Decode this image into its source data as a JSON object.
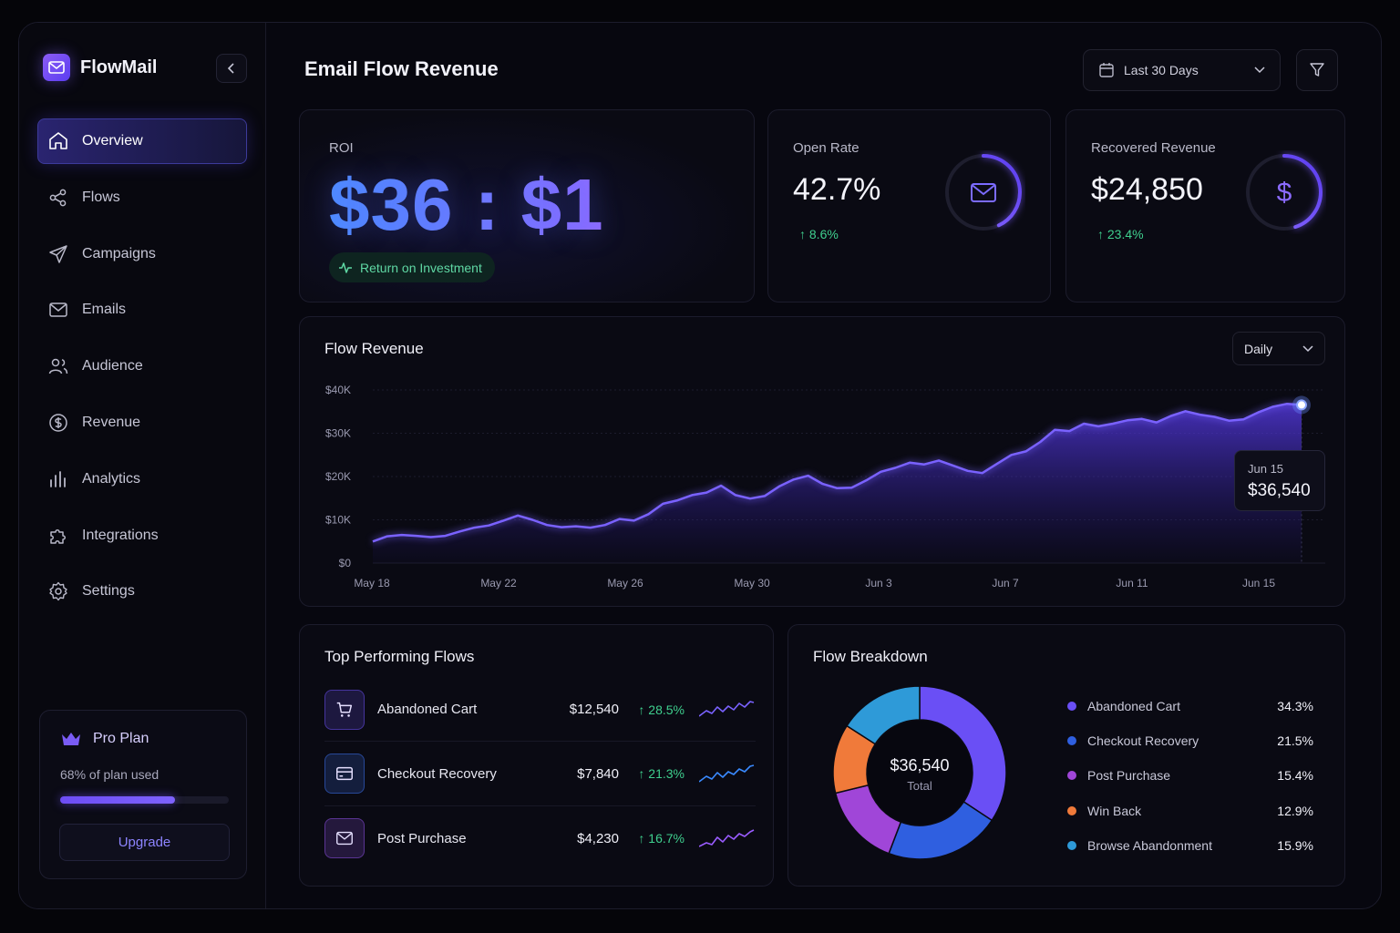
{
  "brand": {
    "name": "FlowMail"
  },
  "nav": [
    {
      "label": "Overview",
      "icon": "home-icon",
      "active": true
    },
    {
      "label": "Flows",
      "icon": "share-icon"
    },
    {
      "label": "Campaigns",
      "icon": "send-icon"
    },
    {
      "label": "Emails",
      "icon": "mail-icon"
    },
    {
      "label": "Audience",
      "icon": "users-icon"
    },
    {
      "label": "Revenue",
      "icon": "dollar-circle-icon"
    },
    {
      "label": "Analytics",
      "icon": "bar-chart-icon"
    },
    {
      "label": "Integrations",
      "icon": "puzzle-icon"
    },
    {
      "label": "Settings",
      "icon": "gear-icon"
    }
  ],
  "plan": {
    "title": "Pro Plan",
    "usage_text": "68% of plan used",
    "usage_fraction": 0.68,
    "upgrade_label": "Upgrade"
  },
  "header": {
    "title": "Email Flow Revenue",
    "date_range": "Last 30 Days"
  },
  "roi": {
    "label": "ROI",
    "value": "$36 : $1",
    "badge": "Return on Investment"
  },
  "open_rate": {
    "label": "Open Rate",
    "value": "42.7%",
    "change": "8.6%",
    "ring_fraction": 0.43
  },
  "recovered": {
    "label": "Recovered Revenue",
    "value": "$24,850",
    "change": "23.4%",
    "ring_fraction": 0.45
  },
  "flow_revenue": {
    "title": "Flow Revenue",
    "granularity": "Daily",
    "tooltip": {
      "date": "Jun 15",
      "value": "$36,540"
    }
  },
  "chart_data": {
    "type": "area",
    "title": "Flow Revenue",
    "y_ticks": [
      "$0",
      "$10K",
      "$20K",
      "$30K",
      "$40K"
    ],
    "ylim": [
      0,
      40000
    ],
    "x_ticks": [
      "May 18",
      "May 22",
      "May 26",
      "May 30",
      "Jun 3",
      "Jun 7",
      "Jun 11",
      "Jun 15"
    ],
    "series": [
      {
        "values": [
          5000,
          6200,
          6500,
          6300,
          6000,
          6300,
          7300,
          8200,
          8700,
          9800,
          11000,
          10000,
          8800,
          8300,
          8500,
          8200,
          8800,
          10200,
          9800,
          11300,
          13700,
          14500,
          15700,
          16300,
          17900,
          15700,
          14900,
          15500,
          17700,
          19300,
          20200,
          18300,
          17300,
          17400,
          19100,
          21100,
          22000,
          23200,
          22800,
          23700,
          22500,
          21300,
          20800,
          22900,
          25000,
          25800,
          28000,
          30800,
          30500,
          32200,
          31600,
          32200,
          33000,
          33300,
          32500,
          34000,
          35100,
          34300,
          33800,
          32900,
          33200,
          34800,
          36100,
          36800,
          36540
        ],
        "x_start": "May 18",
        "x_end": "Jun 17"
      }
    ],
    "grid": true
  },
  "top_flows": {
    "title": "Top Performing Flows",
    "rows": [
      {
        "name": "Abandoned Cart",
        "revenue": "$12,540",
        "change": "28.5%",
        "icon": "cart-icon",
        "color": "#6a4ff0"
      },
      {
        "name": "Checkout Recovery",
        "revenue": "$7,840",
        "change": "21.3%",
        "icon": "credit-card-icon",
        "color": "#3a6fe8"
      },
      {
        "name": "Post Purchase",
        "revenue": "$4,230",
        "change": "16.7%",
        "icon": "mail-icon",
        "color": "#8a4fe0"
      }
    ]
  },
  "breakdown": {
    "title": "Flow Breakdown",
    "total_value": "$36,540",
    "total_label": "Total",
    "items": [
      {
        "label": "Abandoned Cart",
        "pct": "34.3%",
        "value": 34.3,
        "color": "#6a4ff5"
      },
      {
        "label": "Checkout Recovery",
        "pct": "21.5%",
        "value": 21.5,
        "color": "#2f5fe0"
      },
      {
        "label": "Post Purchase",
        "pct": "15.4%",
        "value": 15.4,
        "color": "#a046d8"
      },
      {
        "label": "Win Back",
        "pct": "12.9%",
        "value": 12.9,
        "color": "#f07a3a"
      },
      {
        "label": "Browse Abandonment",
        "pct": "15.9%",
        "value": 15.9,
        "color": "#2e9ad8"
      }
    ]
  }
}
